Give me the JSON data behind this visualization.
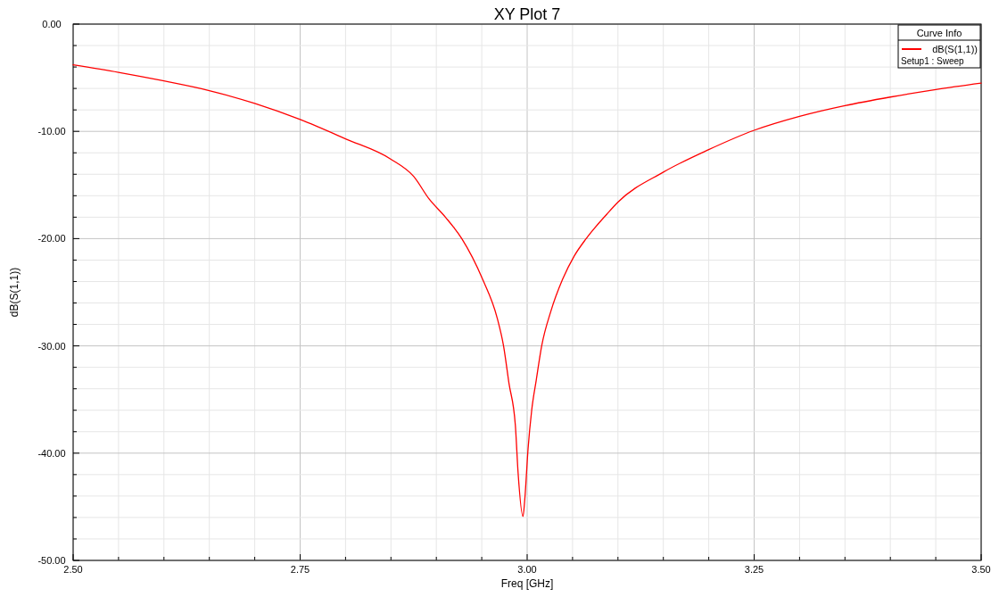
{
  "chart_data": {
    "type": "line",
    "title": "XY Plot 7",
    "xlabel": "Freq [GHz]",
    "ylabel": "dB(S(1,1))",
    "legend_title": "Curve Info",
    "legend": "top right",
    "grid": true,
    "annotations": [
      "Setup1 : Sweep"
    ],
    "xlim": [
      2.5,
      3.5
    ],
    "ylim": [
      -50,
      0
    ],
    "xticks": [
      {
        "value": 2.5,
        "label": "2.50"
      },
      {
        "value": 2.55,
        "label": null
      },
      {
        "value": 2.6,
        "label": null
      },
      {
        "value": 2.65,
        "label": null
      },
      {
        "value": 2.7,
        "label": null
      },
      {
        "value": 2.75,
        "label": "2.75"
      },
      {
        "value": 2.8,
        "label": null
      },
      {
        "value": 2.85,
        "label": null
      },
      {
        "value": 2.9,
        "label": null
      },
      {
        "value": 2.95,
        "label": null
      },
      {
        "value": 3,
        "label": "3.00"
      },
      {
        "value": 3.05,
        "label": null
      },
      {
        "value": 3.1,
        "label": null
      },
      {
        "value": 3.15,
        "label": null
      },
      {
        "value": 3.2,
        "label": null
      },
      {
        "value": 3.25,
        "label": "3.25"
      },
      {
        "value": 3.3,
        "label": null
      },
      {
        "value": 3.35,
        "label": null
      },
      {
        "value": 3.4,
        "label": null
      },
      {
        "value": 3.45,
        "label": null
      },
      {
        "value": 3.5,
        "label": "3.50"
      }
    ],
    "yticks": [
      {
        "value": -50,
        "label": "-50.00"
      },
      {
        "value": -48,
        "label": null
      },
      {
        "value": -46,
        "label": null
      },
      {
        "value": -44,
        "label": null
      },
      {
        "value": -42,
        "label": null
      },
      {
        "value": -40,
        "label": "-40.00"
      },
      {
        "value": -38,
        "label": null
      },
      {
        "value": -36,
        "label": null
      },
      {
        "value": -34,
        "label": null
      },
      {
        "value": -32,
        "label": null
      },
      {
        "value": -30,
        "label": "-30.00"
      },
      {
        "value": -28,
        "label": null
      },
      {
        "value": -26,
        "label": null
      },
      {
        "value": -24,
        "label": null
      },
      {
        "value": -22,
        "label": null
      },
      {
        "value": -20,
        "label": "-20.00"
      },
      {
        "value": -18,
        "label": null
      },
      {
        "value": -16,
        "label": null
      },
      {
        "value": -14,
        "label": null
      },
      {
        "value": -12,
        "label": null
      },
      {
        "value": -10,
        "label": "-10.00"
      },
      {
        "value": -8,
        "label": null
      },
      {
        "value": -6,
        "label": null
      },
      {
        "value": -4,
        "label": null
      },
      {
        "value": -2,
        "label": null
      },
      {
        "value": 0,
        "label": "0.00"
      }
    ],
    "series": [
      {
        "name": "dB(S(1,1))",
        "color": "#ff0000",
        "x": [
          2.5,
          2.55,
          2.6,
          2.65,
          2.7,
          2.75,
          2.8,
          2.85,
          2.875,
          2.892,
          2.91,
          2.928,
          2.951,
          2.967,
          2.974,
          2.98,
          2.987,
          2.99,
          2.9954,
          2.9974,
          3.001,
          3.005,
          3.01,
          3.016,
          3.026,
          3.039,
          3.052,
          3.065,
          3.088,
          3.1,
          3.15,
          3.2,
          3.25,
          3.3,
          3.35,
          3.4,
          3.45,
          3.5
        ],
        "values": [
          -3.8,
          -4.5,
          -5.3,
          -6.2,
          -7.4,
          -8.9,
          -10.7,
          -12.6,
          -14.2,
          -16.3,
          -18.0,
          -20.0,
          -23.8,
          -27.4,
          -30.0,
          -33.5,
          -37.4,
          -41.8,
          -45.9,
          -44.3,
          -39.6,
          -36.0,
          -33.2,
          -30.0,
          -26.8,
          -23.8,
          -21.6,
          -20.0,
          -17.7,
          -16.6,
          -13.8,
          -11.7,
          -9.9,
          -8.6,
          -7.6,
          -6.8,
          -6.1,
          -5.5
        ]
      }
    ]
  }
}
